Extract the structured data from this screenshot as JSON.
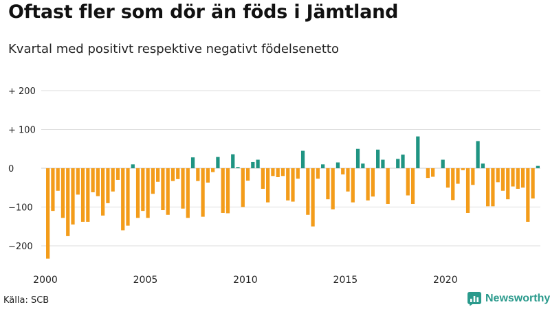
{
  "title": "Oftast fler som dör än föds i Jämtland",
  "subtitle": "Kvartal med positivt respektive negativt födelsenetto",
  "source": "Källa: SCB",
  "brand": {
    "name": "Newsworthy",
    "icon": "newsworthy-logo-icon"
  },
  "colors": {
    "positive": "#1f9482",
    "negative": "#f39c1a",
    "grid": "#dddddd",
    "text": "#222222"
  },
  "chart_data": {
    "type": "bar",
    "title": "Oftast fler som dör än föds i Jämtland",
    "subtitle": "Kvartal med positivt respektive negativt födelsenetto",
    "xlabel": "",
    "ylabel": "",
    "ylim": [
      -240,
      240
    ],
    "xlim": [
      2000,
      2024.75
    ],
    "y_ticks": [
      {
        "value": 200,
        "label": "+ 200"
      },
      {
        "value": 100,
        "label": "+ 100"
      },
      {
        "value": 0,
        "label": "0"
      },
      {
        "value": -100,
        "label": "−100"
      },
      {
        "value": -200,
        "label": "−200"
      }
    ],
    "x_ticks": [
      {
        "value": 2000,
        "label": "2000"
      },
      {
        "value": 2005,
        "label": "2005"
      },
      {
        "value": 2010,
        "label": "2010"
      },
      {
        "value": 2015,
        "label": "2015"
      },
      {
        "value": 2020,
        "label": "2020"
      }
    ],
    "x_start": 2000,
    "period": "quarter",
    "series": [
      {
        "name": "Födelsenetto",
        "values": [
          -233,
          -110,
          -58,
          -128,
          -175,
          -145,
          -68,
          -138,
          -138,
          -62,
          -72,
          -122,
          -90,
          -60,
          -30,
          -160,
          -148,
          10,
          -128,
          -110,
          -128,
          -66,
          -35,
          -108,
          -120,
          -33,
          -28,
          -104,
          -128,
          28,
          -33,
          -125,
          -37,
          -10,
          29,
          -115,
          -116,
          36,
          3,
          -100,
          -32,
          16,
          22,
          -53,
          -88,
          -20,
          -23,
          -20,
          -83,
          -86,
          -27,
          45,
          -120,
          -150,
          -27,
          10,
          -80,
          -106,
          15,
          -16,
          -60,
          -88,
          50,
          12,
          -83,
          -73,
          48,
          22,
          -92,
          0,
          24,
          35,
          -70,
          -92,
          82,
          0,
          -25,
          -22,
          0,
          22,
          -50,
          -82,
          -40,
          -5,
          -115,
          -43,
          70,
          12,
          -98,
          -98,
          -36,
          -58,
          -80,
          -47,
          -53,
          -50,
          -138,
          -78,
          6
        ]
      }
    ]
  }
}
